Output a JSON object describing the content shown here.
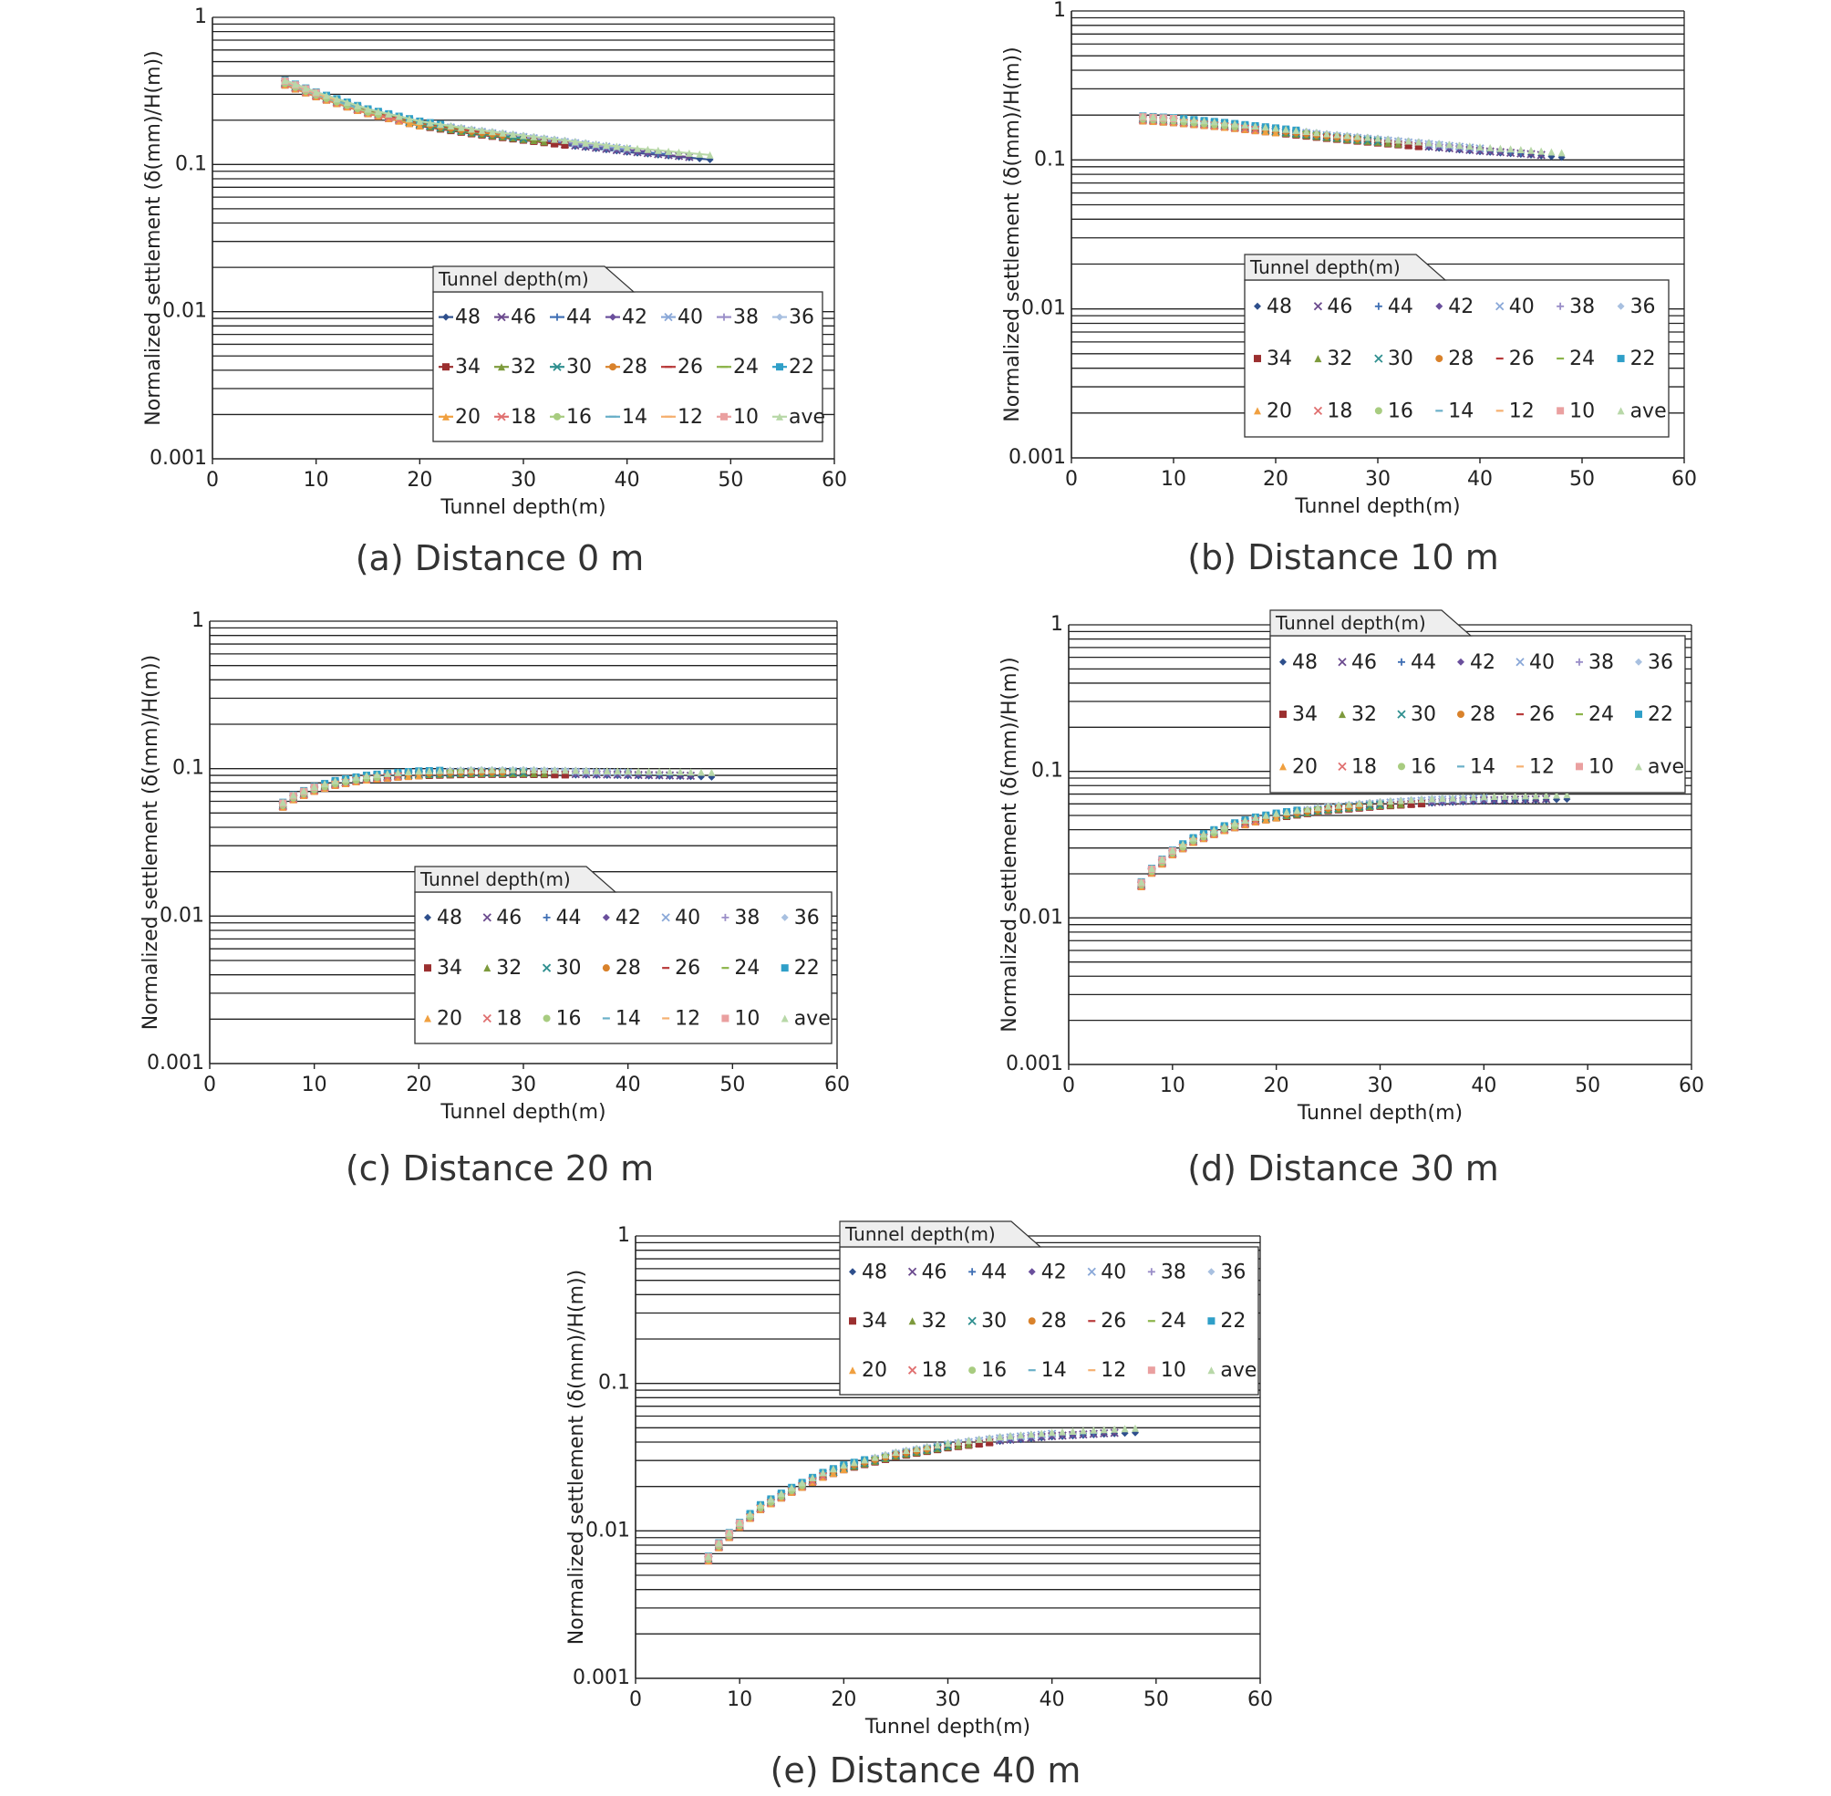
{
  "chart_data": [
    {
      "type": "scatter",
      "caption": "(a) Distance 0 m",
      "xlabel": "Tunnel depth(m)",
      "ylabel": "Normalized settlement (δ(mm)/H(m))",
      "xlim": [
        0,
        60
      ],
      "ylim": [
        0.001,
        1
      ],
      "yscale": "log",
      "xticks": [
        "0",
        "10",
        "20",
        "30",
        "40",
        "50",
        "60"
      ],
      "yticks": [
        "1",
        "0.1",
        "0.01",
        "0.001"
      ],
      "grid": "horizontal",
      "legend_title": "Tunnel depth(m)",
      "legend_placement": "lower-right",
      "marker_style": "line",
      "series_labels": [
        "48",
        "46",
        "44",
        "42",
        "40",
        "38",
        "36",
        "34",
        "32",
        "30",
        "28",
        "26",
        "24",
        "22",
        "20",
        "18",
        "16",
        "14",
        "12",
        "10",
        "ave"
      ],
      "curve": {
        "x": [
          7,
          10,
          15,
          20,
          25,
          30,
          35,
          40,
          45,
          48
        ],
        "y": [
          0.36,
          0.3,
          0.23,
          0.19,
          0.168,
          0.152,
          0.138,
          0.126,
          0.117,
          0.112
        ]
      }
    },
    {
      "type": "scatter",
      "caption": "(b) Distance 10 m",
      "xlabel": "Tunnel depth(m)",
      "ylabel": "Normalized settlement (δ(mm)/H(m))",
      "xlim": [
        0,
        60
      ],
      "ylim": [
        0.001,
        1
      ],
      "yscale": "log",
      "xticks": [
        "0",
        "10",
        "20",
        "30",
        "40",
        "50",
        "60"
      ],
      "yticks": [
        "1",
        "0.1",
        "0.01",
        "0.001"
      ],
      "grid": "horizontal",
      "legend_title": "Tunnel depth(m)",
      "legend_placement": "lower-right",
      "marker_style": "point",
      "series_labels": [
        "48",
        "46",
        "44",
        "42",
        "40",
        "38",
        "36",
        "34",
        "32",
        "30",
        "28",
        "26",
        "24",
        "22",
        "20",
        "18",
        "16",
        "14",
        "12",
        "10",
        "ave"
      ],
      "curve": {
        "x": [
          7,
          10,
          15,
          20,
          25,
          30,
          35,
          40,
          45,
          48
        ],
        "y": [
          0.19,
          0.185,
          0.172,
          0.158,
          0.145,
          0.135,
          0.126,
          0.118,
          0.112,
          0.108
        ]
      }
    },
    {
      "type": "scatter",
      "caption": "(c) Distance 20 m",
      "xlabel": "Tunnel depth(m)",
      "ylabel": "Normalized settlement (δ(mm)/H(m))",
      "xlim": [
        0,
        60
      ],
      "ylim": [
        0.001,
        1
      ],
      "yscale": "log",
      "xticks": [
        "0",
        "10",
        "20",
        "30",
        "40",
        "50",
        "60"
      ],
      "yticks": [
        "1",
        "0.1",
        "0.01",
        "0.001"
      ],
      "grid": "horizontal",
      "legend_title": "Tunnel depth(m)",
      "legend_placement": "lower-right",
      "marker_style": "point",
      "series_labels": [
        "48",
        "46",
        "44",
        "42",
        "40",
        "38",
        "36",
        "34",
        "32",
        "30",
        "28",
        "26",
        "24",
        "22",
        "20",
        "18",
        "16",
        "14",
        "12",
        "10",
        "ave"
      ],
      "curve": {
        "x": [
          7,
          8,
          10,
          12,
          15,
          18,
          20,
          25,
          30,
          35,
          40,
          45,
          48
        ],
        "y": [
          0.057,
          0.064,
          0.073,
          0.08,
          0.087,
          0.091,
          0.093,
          0.095,
          0.095,
          0.094,
          0.093,
          0.092,
          0.091
        ]
      }
    },
    {
      "type": "scatter",
      "caption": "(d) Distance 30 m",
      "xlabel": "Tunnel depth(m)",
      "ylabel": "Normalized settlement (δ(mm)/H(m))",
      "xlim": [
        0,
        60
      ],
      "ylim": [
        0.001,
        1
      ],
      "yscale": "log",
      "xticks": [
        "0",
        "10",
        "20",
        "30",
        "40",
        "50",
        "60"
      ],
      "yticks": [
        "1",
        "0.1",
        "0.01",
        "0.001"
      ],
      "grid": "horizontal",
      "legend_title": "Tunnel depth(m)",
      "legend_placement": "top-right",
      "marker_style": "point",
      "series_labels": [
        "48",
        "46",
        "44",
        "42",
        "40",
        "38",
        "36",
        "34",
        "32",
        "30",
        "28",
        "26",
        "24",
        "22",
        "20",
        "18",
        "16",
        "14",
        "12",
        "10",
        "ave"
      ],
      "curve": {
        "x": [
          7,
          8,
          10,
          12,
          15,
          18,
          20,
          25,
          30,
          35,
          40,
          45,
          48
        ],
        "y": [
          0.017,
          0.021,
          0.028,
          0.034,
          0.041,
          0.047,
          0.05,
          0.056,
          0.06,
          0.063,
          0.065,
          0.066,
          0.067
        ]
      }
    },
    {
      "type": "scatter",
      "caption": "(e) Distance 40 m",
      "xlabel": "Tunnel depth(m)",
      "ylabel": "Normalized settlement (δ(mm)/H(m))",
      "xlim": [
        0,
        60
      ],
      "ylim": [
        0.001,
        1
      ],
      "yscale": "log",
      "xticks": [
        "0",
        "10",
        "20",
        "30",
        "40",
        "50",
        "60"
      ],
      "yticks": [
        "1",
        "0.1",
        "0.01",
        "0.001"
      ],
      "grid": "horizontal",
      "legend_title": "Tunnel depth(m)",
      "legend_placement": "top-center",
      "marker_style": "point",
      "series_labels": [
        "48",
        "46",
        "44",
        "42",
        "40",
        "38",
        "36",
        "34",
        "32",
        "30",
        "28",
        "26",
        "24",
        "22",
        "20",
        "18",
        "16",
        "14",
        "12",
        "10",
        "ave"
      ],
      "curve": {
        "x": [
          7,
          8,
          10,
          12,
          15,
          18,
          20,
          25,
          30,
          35,
          40,
          45,
          48
        ],
        "y": [
          0.0065,
          0.008,
          0.011,
          0.0145,
          0.019,
          0.024,
          0.027,
          0.033,
          0.038,
          0.042,
          0.045,
          0.047,
          0.048
        ]
      }
    }
  ],
  "series_colors": [
    "#2e4f8c",
    "#6b4a8e",
    "#3f6fb4",
    "#6a4f9c",
    "#8aa8d8",
    "#9a8ec8",
    "#a8c0e0",
    "#9b2f2f",
    "#7d9a3c",
    "#2f8f8f",
    "#d9822b",
    "#b83a3a",
    "#8cb44a",
    "#2f9fc8",
    "#f0a040",
    "#e07070",
    "#a8cc80",
    "#6ab0c8",
    "#f5b070",
    "#eaa0a0",
    "#b8d8a8"
  ],
  "series_markers": [
    "diamond",
    "x",
    "plus",
    "diamond",
    "x",
    "plus",
    "diamond",
    "square",
    "triangle",
    "x",
    "circle",
    "dash",
    "dash",
    "square",
    "triangle",
    "x",
    "circle",
    "dash",
    "dash",
    "square",
    "triangle"
  ]
}
